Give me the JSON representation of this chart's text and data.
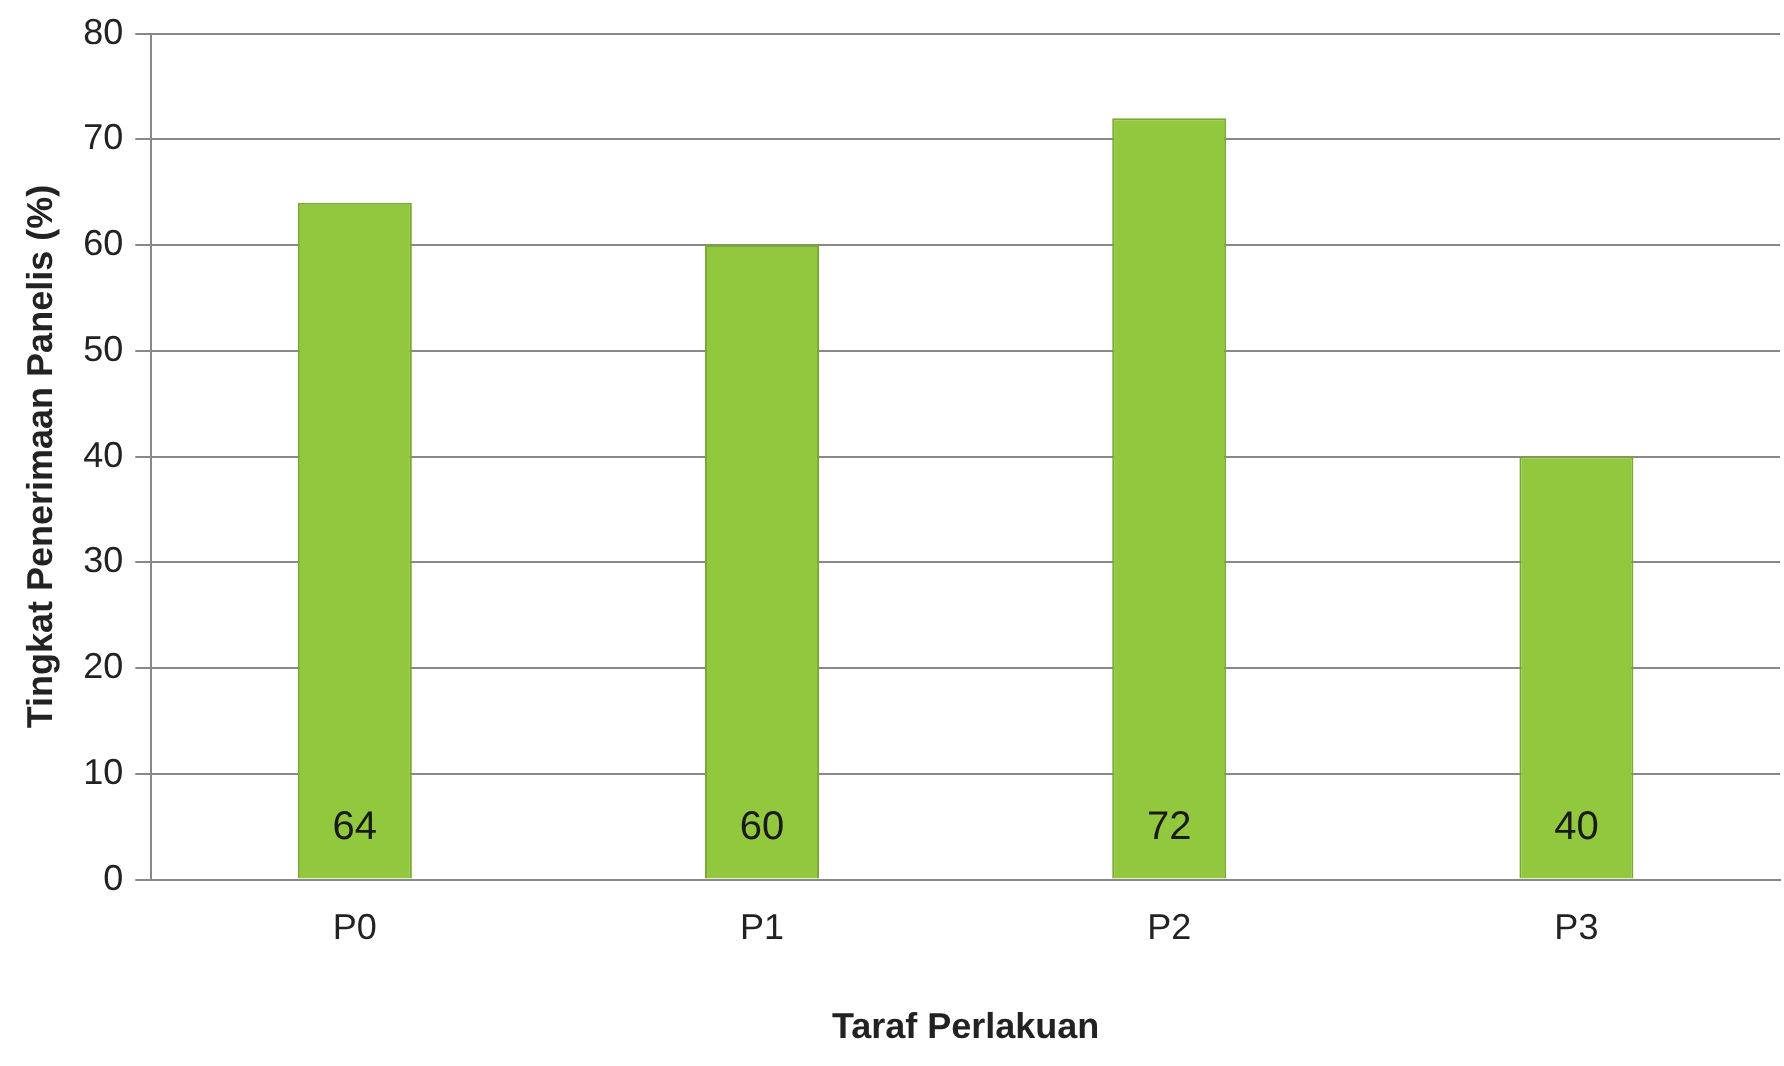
{
  "chart_data": {
    "type": "bar",
    "xlabel": "Taraf Perlakuan",
    "ylabel": "Tingkat Penerimaan Panelis (%)",
    "categories": [
      "P0",
      "P1",
      "P2",
      "P3"
    ],
    "values": [
      64,
      60,
      72,
      40
    ],
    "color": "#92c83e",
    "ylim": [
      0,
      80
    ],
    "yticks": [
      0,
      10,
      20,
      30,
      40,
      50,
      60,
      70,
      80
    ],
    "grid": "y",
    "data_labels": true
  }
}
